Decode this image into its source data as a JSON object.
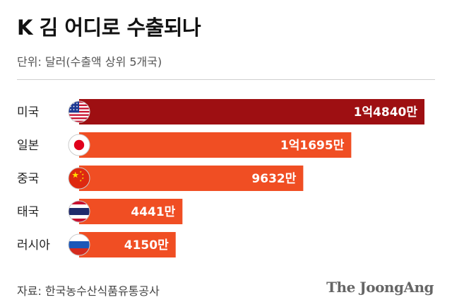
{
  "header": {
    "title": "K 김 어디로 수출되나",
    "unit": "단위: 달러(수출액 상위 5개국)"
  },
  "footer": {
    "source": "자료: 한국농수산식품유통공사",
    "brand": "The JoongAng"
  },
  "chart_data": {
    "type": "bar",
    "orientation": "horizontal",
    "title": "K 김 어디로 수출되나",
    "unit": "단위: 달러(수출액 상위 5개국)",
    "categories": [
      "미국",
      "일본",
      "중국",
      "태국",
      "러시아"
    ],
    "values": [
      148400000,
      116950000,
      96320000,
      44410000,
      41500000
    ],
    "labels": [
      "1억4840만",
      "1억1695만",
      "9632만",
      "4441만",
      "4150만"
    ],
    "flags": [
      "usa-flag-icon",
      "japan-flag-icon",
      "china-flag-icon",
      "thailand-flag-icon",
      "russia-flag-icon"
    ],
    "colors": [
      "#9e0f12",
      "#f04e23",
      "#f04e23",
      "#f04e23",
      "#f04e23"
    ],
    "grid": false,
    "legend": "none"
  }
}
